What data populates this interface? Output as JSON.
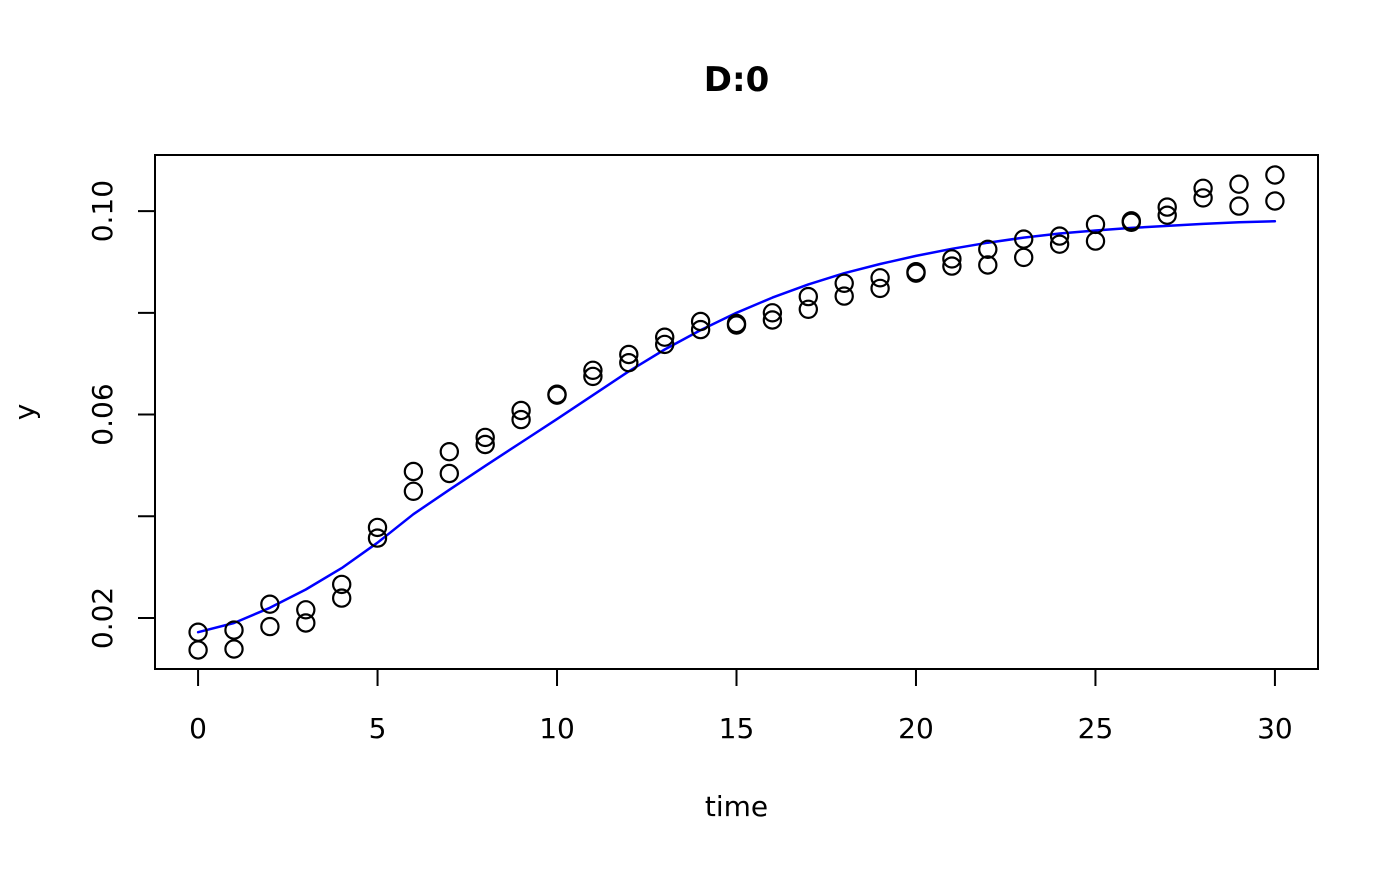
{
  "figure": {
    "background": "#ffffff",
    "foreground": "#000000"
  },
  "chart_data": {
    "type": "scatter",
    "title": "D:0",
    "xlabel": "time",
    "ylabel": "y",
    "xlim": [
      -1.2,
      31.2
    ],
    "ylim": [
      0.00996,
      0.11104
    ],
    "x_ticks": [
      0,
      5,
      10,
      15,
      20,
      25,
      30
    ],
    "x_tick_labels": [
      "0",
      "5",
      "10",
      "15",
      "20",
      "25",
      "30"
    ],
    "y_ticks": [
      0.02,
      0.04,
      0.06,
      0.08,
      0.1
    ],
    "y_tick_labels": [
      "0.02",
      "",
      "0.06",
      "",
      "0.10"
    ],
    "grid": false,
    "legend": "none",
    "box": true,
    "point_color": "#000000",
    "line_color": "#0000FF",
    "series": [
      {
        "name": "observed-points",
        "type": "scatter",
        "marker": "open-circle",
        "color": "#000000",
        "points": [
          [
            0,
            0.0172
          ],
          [
            0,
            0.0137
          ],
          [
            1,
            0.0176
          ],
          [
            1,
            0.0139
          ],
          [
            2,
            0.0227
          ],
          [
            2,
            0.0183
          ],
          [
            3,
            0.0216
          ],
          [
            3,
            0.019
          ],
          [
            4,
            0.0266
          ],
          [
            4,
            0.0239
          ],
          [
            5,
            0.0378
          ],
          [
            5,
            0.0357
          ],
          [
            6,
            0.0488
          ],
          [
            6,
            0.0449
          ],
          [
            7,
            0.0527
          ],
          [
            7,
            0.0484
          ],
          [
            8,
            0.0555
          ],
          [
            8,
            0.0541
          ],
          [
            9,
            0.0608
          ],
          [
            9,
            0.059
          ],
          [
            10,
            0.064
          ],
          [
            10,
            0.0638
          ],
          [
            11,
            0.0687
          ],
          [
            11,
            0.0675
          ],
          [
            12,
            0.0718
          ],
          [
            12,
            0.0702
          ],
          [
            13,
            0.0752
          ],
          [
            13,
            0.0738
          ],
          [
            14,
            0.0783
          ],
          [
            14,
            0.0767
          ],
          [
            15,
            0.0779
          ],
          [
            15,
            0.0776
          ],
          [
            16,
            0.08
          ],
          [
            16,
            0.0786
          ],
          [
            17,
            0.0832
          ],
          [
            17,
            0.0807
          ],
          [
            18,
            0.0858
          ],
          [
            18,
            0.0833
          ],
          [
            19,
            0.0869
          ],
          [
            19,
            0.0848
          ],
          [
            20,
            0.0881
          ],
          [
            20,
            0.0878
          ],
          [
            21,
            0.0906
          ],
          [
            21,
            0.0892
          ],
          [
            22,
            0.0925
          ],
          [
            22,
            0.0894
          ],
          [
            23,
            0.0945
          ],
          [
            23,
            0.0909
          ],
          [
            24,
            0.0951
          ],
          [
            24,
            0.0935
          ],
          [
            25,
            0.0974
          ],
          [
            25,
            0.0941
          ],
          [
            26,
            0.0981
          ],
          [
            26,
            0.0978
          ],
          [
            27,
            0.1008
          ],
          [
            27,
            0.0992
          ],
          [
            28,
            0.1045
          ],
          [
            28,
            0.1026
          ],
          [
            29,
            0.1053
          ],
          [
            29,
            0.101
          ],
          [
            30,
            0.1071
          ],
          [
            30,
            0.102
          ]
        ]
      },
      {
        "name": "fitted-curve",
        "type": "line",
        "color": "#0000FF",
        "x": [
          0,
          1,
          2,
          3,
          4,
          5,
          6,
          7,
          8,
          9,
          10,
          11,
          12,
          13,
          14,
          15,
          16,
          17,
          18,
          19,
          20,
          21,
          22,
          23,
          24,
          25,
          26,
          27,
          28,
          29,
          30
        ],
        "y": [
          0.0172,
          0.019,
          0.022,
          0.0256,
          0.0298,
          0.0348,
          0.0404,
          0.0452,
          0.0499,
          0.0545,
          0.0591,
          0.0638,
          0.0685,
          0.0728,
          0.0766,
          0.08,
          0.083,
          0.0856,
          0.0878,
          0.0896,
          0.0912,
          0.0926,
          0.0938,
          0.0948,
          0.0956,
          0.0962,
          0.0967,
          0.0971,
          0.0975,
          0.0978,
          0.098
        ]
      }
    ]
  }
}
